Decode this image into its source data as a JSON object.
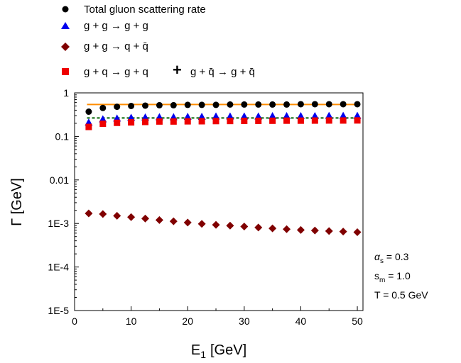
{
  "chart_data": {
    "type": "scatter",
    "title": "",
    "xlabel": {
      "main": "E",
      "sub": "1",
      "unit": "[GeV]"
    },
    "ylabel": "Γ [GeV]",
    "xlim": [
      0,
      51
    ],
    "ylim": [
      1e-05,
      1
    ],
    "yscale": "log",
    "grid": false,
    "legend_position": "top-left, above plot",
    "x_ticks": [
      "0",
      "10",
      "20",
      "30",
      "40",
      "50"
    ],
    "y_ticks": [
      {
        "value": 1,
        "label": "1"
      },
      {
        "value": 0.1,
        "label": "0.1"
      },
      {
        "value": 0.01,
        "label": "0.01"
      },
      {
        "value": 0.001,
        "label": "1E-3"
      },
      {
        "value": 0.0001,
        "label": "1E-4"
      },
      {
        "value": 1e-05,
        "label": "1E-5"
      }
    ],
    "x": [
      2.5,
      5,
      7.5,
      10,
      12.5,
      15,
      17.5,
      20,
      22.5,
      25,
      27.5,
      30,
      32.5,
      35,
      37.5,
      40,
      42.5,
      45,
      47.5,
      50
    ],
    "series": [
      {
        "name": "Total gluon scattering rate",
        "marker": "circle",
        "color": "#000000",
        "values": [
          0.37,
          0.45,
          0.48,
          0.5,
          0.51,
          0.52,
          0.52,
          0.53,
          0.53,
          0.53,
          0.54,
          0.54,
          0.54,
          0.54,
          0.54,
          0.55,
          0.55,
          0.55,
          0.55,
          0.55
        ]
      },
      {
        "name": "g + g → g + g",
        "marker": "triangle",
        "color": "#0000ee",
        "values": [
          0.21,
          0.25,
          0.26,
          0.27,
          0.275,
          0.28,
          0.28,
          0.285,
          0.285,
          0.29,
          0.29,
          0.29,
          0.29,
          0.295,
          0.295,
          0.295,
          0.295,
          0.3,
          0.3,
          0.3
        ]
      },
      {
        "name": "g + g → q + q̄",
        "marker": "diamond",
        "color": "#800000",
        "values": [
          0.0017,
          0.00165,
          0.0015,
          0.0014,
          0.0013,
          0.0012,
          0.00112,
          0.00105,
          0.00098,
          0.00093,
          0.00089,
          0.00085,
          0.00081,
          0.00077,
          0.00074,
          0.00071,
          0.00069,
          0.00067,
          0.00065,
          0.00063
        ]
      },
      {
        "name": "g + q → g + q  +  g + q̄ → g + q̄",
        "marker": "square",
        "color": "#ee0000",
        "values": [
          0.165,
          0.195,
          0.205,
          0.21,
          0.215,
          0.22,
          0.22,
          0.222,
          0.223,
          0.225,
          0.226,
          0.227,
          0.228,
          0.229,
          0.23,
          0.23,
          0.231,
          0.232,
          0.232,
          0.233
        ]
      }
    ],
    "reference_lines": [
      {
        "value": 0.54,
        "color": "#ff8c00",
        "style": "solid"
      },
      {
        "value": 0.265,
        "color": "#006400",
        "style": "dashed"
      }
    ],
    "legend": {
      "entries": [
        {
          "marker": "circle",
          "color": "#000000",
          "text": "Total gluon scattering rate"
        },
        {
          "marker": "triangle",
          "color": "#0000ee",
          "text": "g + g → g + g"
        },
        {
          "marker": "diamond",
          "color": "#800000",
          "text": "g + g → q + q̄"
        },
        {
          "marker": "square",
          "color": "#ee0000",
          "text_a": "g + q → g + q",
          "plus": "+",
          "text_b": "g + q̄ → g + q̄"
        }
      ]
    },
    "annotations": {
      "alpha": {
        "symbol": "α",
        "sub": "s",
        "value": " = 0.3"
      },
      "sm": {
        "symbol": "s",
        "sub": "m",
        "value": " = 1.0"
      },
      "temp": "T = 0.5 GeV"
    }
  }
}
